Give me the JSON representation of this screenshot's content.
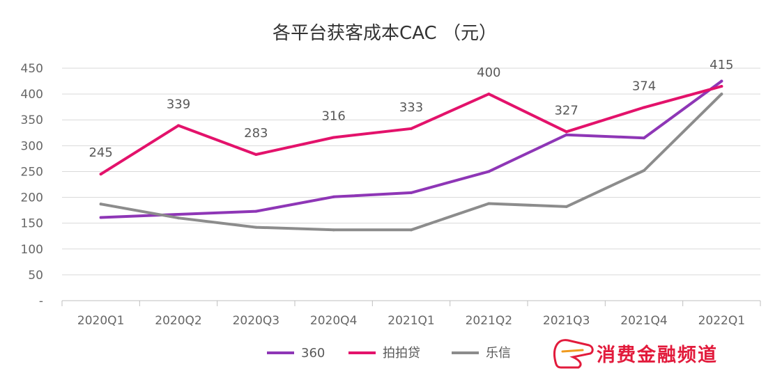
{
  "chart_data": {
    "type": "line",
    "title": "各平台获客成本CAC （元）",
    "categories": [
      "2020Q1",
      "2020Q2",
      "2020Q3",
      "2020Q4",
      "2021Q1",
      "2021Q2",
      "2021Q3",
      "2021Q4",
      "2022Q1"
    ],
    "ylim": [
      0,
      450
    ],
    "yticks": [
      0,
      50,
      100,
      150,
      200,
      250,
      300,
      350,
      400,
      450
    ],
    "ytick_labels": [
      "-",
      "50",
      "100",
      "150",
      "200",
      "250",
      "300",
      "350",
      "400",
      "450"
    ],
    "grid": true,
    "legend_position": "bottom",
    "series": [
      {
        "name": "360",
        "color": "#8e36b6",
        "values": [
          161,
          167,
          173,
          201,
          209,
          250,
          321,
          315,
          425
        ],
        "data_labels": false
      },
      {
        "name": "拍拍贷",
        "color": "#e3126b",
        "values": [
          245,
          339,
          283,
          316,
          333,
          400,
          327,
          374,
          415
        ],
        "data_labels": true
      },
      {
        "name": "乐信",
        "color": "#8c8c8c",
        "values": [
          187,
          160,
          142,
          137,
          137,
          188,
          182,
          252,
          400
        ],
        "data_labels": false
      }
    ]
  },
  "watermark": {
    "text": "消费金融频道"
  }
}
